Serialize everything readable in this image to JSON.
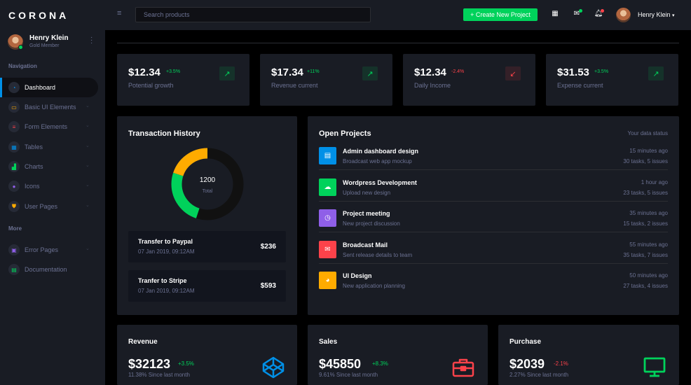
{
  "brand": "CORONA",
  "profile": {
    "name": "Henry Klein",
    "role": "Gold Member"
  },
  "sidebar": {
    "section_navigation": "Navigation",
    "section_more": "More",
    "items": [
      {
        "label": "Dashboard",
        "icon": "speedometer-icon",
        "color": "#0090e7"
      },
      {
        "label": "Basic UI Elements",
        "icon": "laptop-icon",
        "color": "#ffab00"
      },
      {
        "label": "Form Elements",
        "icon": "playlist-icon",
        "color": "#fc424a"
      },
      {
        "label": "Tables",
        "icon": "table-icon",
        "color": "#0090e7"
      },
      {
        "label": "Charts",
        "icon": "chart-icon",
        "color": "#00d25b"
      },
      {
        "label": "Icons",
        "icon": "contacts-icon",
        "color": "#8f5fe8"
      },
      {
        "label": "User Pages",
        "icon": "security-icon",
        "color": "#ffab00"
      }
    ],
    "more_items": [
      {
        "label": "Error Pages",
        "icon": "lock-icon",
        "color": "#6c7293"
      },
      {
        "label": "Documentation",
        "icon": "file-document-icon",
        "color": "#00d25b"
      }
    ]
  },
  "topbar": {
    "search_placeholder": "Search products",
    "create_button": "+ Create New Project",
    "user_name": "Henry Klein"
  },
  "stats": [
    {
      "amount": "$12.34",
      "change": "+3.5%",
      "label": "Potential growth",
      "trend": "up"
    },
    {
      "amount": "$17.34",
      "change": "+11%",
      "label": "Revenue current",
      "trend": "up"
    },
    {
      "amount": "$12.34",
      "change": "-2.4%",
      "label": "Daily Income",
      "trend": "down"
    },
    {
      "amount": "$31.53",
      "change": "+3.5%",
      "label": "Expense current",
      "trend": "up"
    }
  ],
  "transaction_history": {
    "title": "Transaction History",
    "donut_value": "1200",
    "donut_label": "Total",
    "donut_segments": [
      {
        "value": 55,
        "color": "#111111"
      },
      {
        "value": 25,
        "color": "#00d25b"
      },
      {
        "value": 20,
        "color": "#ffab00"
      }
    ],
    "transfers": [
      {
        "title": "Transfer to Paypal",
        "date": "07 Jan 2019, 09:12AM",
        "amount": "$236"
      },
      {
        "title": "Tranfer to Stripe",
        "date": "07 Jan 2019, 09:12AM",
        "amount": "$593"
      }
    ]
  },
  "open_projects": {
    "title": "Open Projects",
    "status": "Your data status",
    "items": [
      {
        "title": "Admin dashboard design",
        "subtitle": "Broadcast web app mockup",
        "time": "15 minutes ago",
        "meta": "30 tasks, 5 issues",
        "color": "#0090e7",
        "icon": "file-icon"
      },
      {
        "title": "Wordpress Development",
        "subtitle": "Upload new design",
        "time": "1 hour ago",
        "meta": "23 tasks, 5 issues",
        "color": "#00d25b",
        "icon": "cloud-download-icon"
      },
      {
        "title": "Project meeting",
        "subtitle": "New project discussion",
        "time": "35 minutes ago",
        "meta": "15 tasks, 2 issues",
        "color": "#8f5fe8",
        "icon": "clock-icon"
      },
      {
        "title": "Broadcast Mail",
        "subtitle": "Sent release details to team",
        "time": "55 minutes ago",
        "meta": "35 tasks, 7 issues",
        "color": "#fc424a",
        "icon": "email-icon"
      },
      {
        "title": "UI Design",
        "subtitle": "New application planning",
        "time": "50 minutes ago",
        "meta": "27 tasks, 4 issues",
        "color": "#ffab00",
        "icon": "chart-pie-icon"
      }
    ]
  },
  "bottom": [
    {
      "title": "Revenue",
      "amount": "$32123",
      "change": "+3.5%",
      "sub": "11.38% Since last month",
      "trend": "up",
      "icon": "codepen-icon",
      "color": "#0090e7"
    },
    {
      "title": "Sales",
      "amount": "$45850",
      "change": "+8.3%",
      "sub": "9.61% Since last month",
      "trend": "up",
      "icon": "briefcase-icon",
      "color": "#fc424a"
    },
    {
      "title": "Purchase",
      "amount": "$2039",
      "change": "-2.1%",
      "sub": "2.27% Since last month",
      "trend": "down",
      "icon": "monitor-icon",
      "color": "#00d25b"
    }
  ]
}
